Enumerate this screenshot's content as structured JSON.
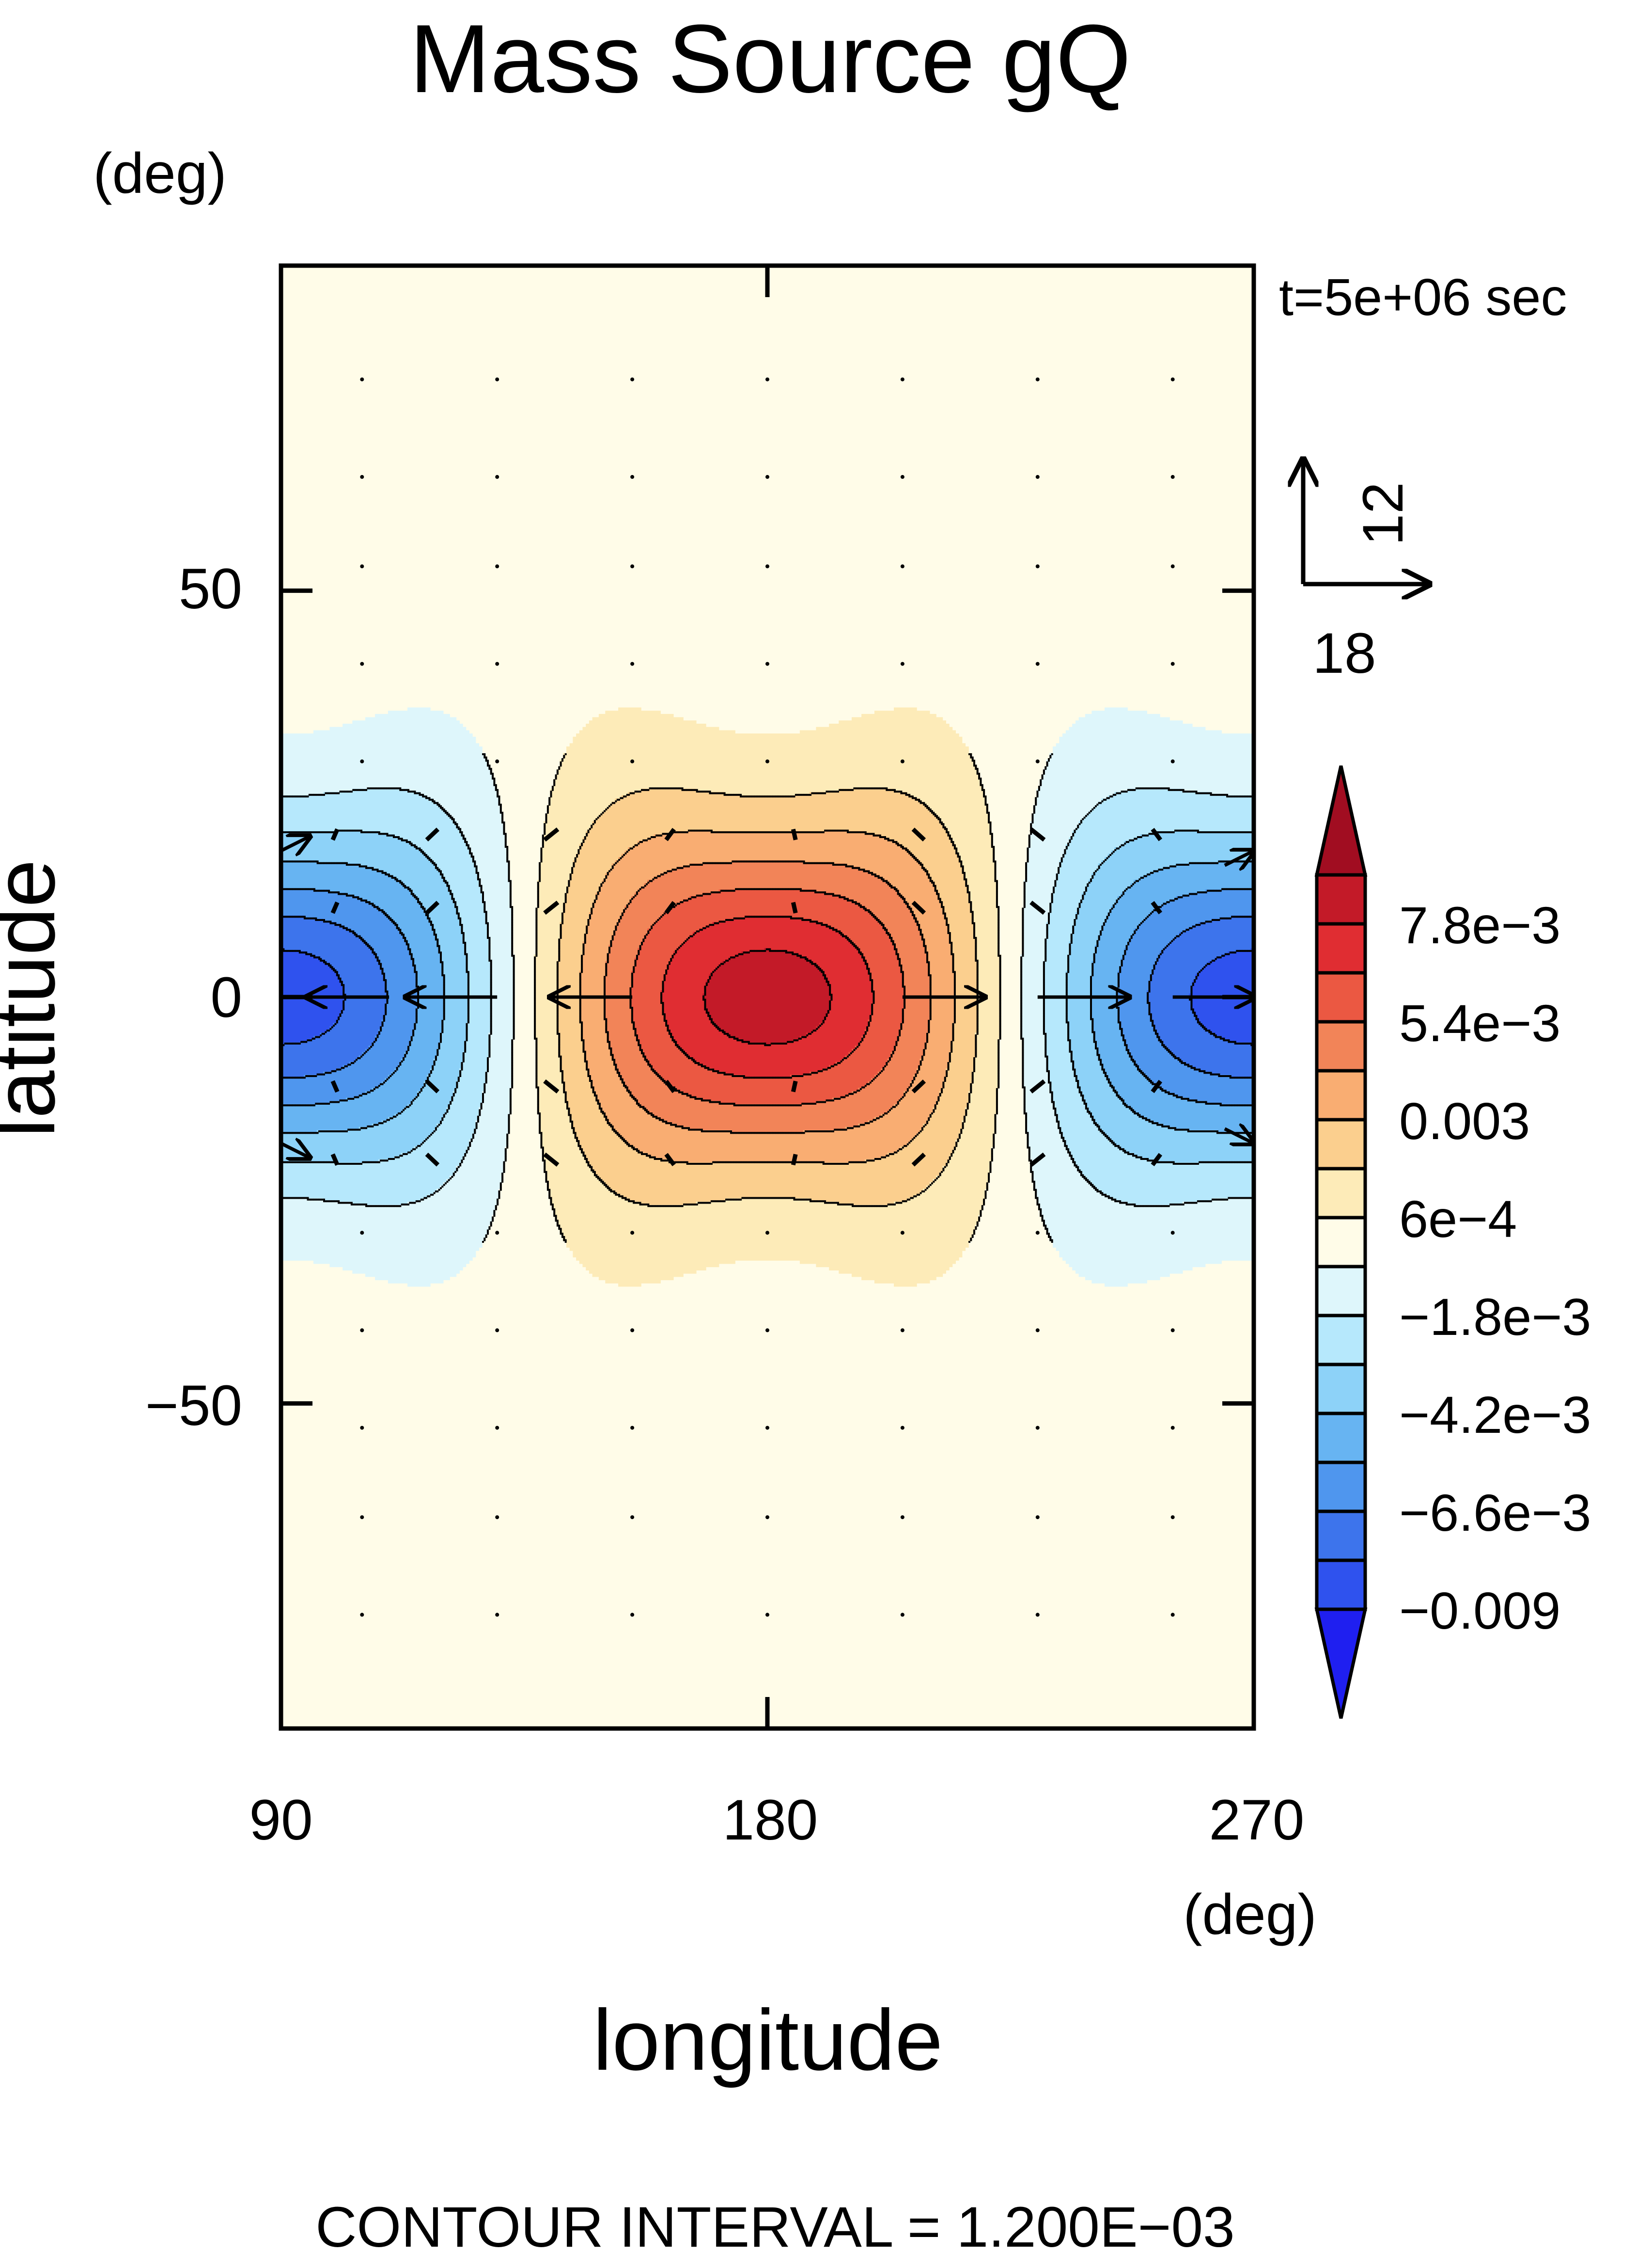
{
  "chart_data": {
    "type": "heatmap",
    "title": "Mass Source gQ",
    "xlabel": "longitude",
    "ylabel": "latitude",
    "x_unit": "(deg)",
    "y_unit": "(deg)",
    "xlim": [
      90,
      270
    ],
    "ylim": [
      -90,
      90
    ],
    "x_ticks": [
      90,
      180,
      270
    ],
    "x_tick_labels": [
      "90",
      "180",
      "270"
    ],
    "y_ticks": [
      50,
      0,
      -50
    ],
    "y_tick_labels": [
      "50",
      "0",
      "−50"
    ],
    "time_label": "t=5e+06 sec",
    "reference_vector": {
      "u": 18,
      "v": 12,
      "u_label": "18",
      "v_label": "12"
    },
    "footer": "CONTOUR INTERVAL = 1.200E−03",
    "contour_interval": 0.0012,
    "field_extrema": [
      {
        "lon": 90,
        "lat": 0,
        "value": -0.0085
      },
      {
        "lon": 180,
        "lat": 0,
        "value": 0.0085
      },
      {
        "lon": 270,
        "lat": 0,
        "value": -0.0085
      }
    ],
    "colorbar": {
      "levels": [
        -0.009,
        -0.0078,
        -0.0066,
        -0.0054,
        -0.0042,
        -0.003,
        -0.0018,
        -0.0006,
        0.0006,
        0.0018,
        0.003,
        0.0042,
        0.0054,
        0.0066,
        0.0078,
        0.009
      ],
      "tick_labels": [
        "7.8e−3",
        "5.4e−3",
        "0.003",
        "6e−4",
        "−1.8e−3",
        "−4.2e−3",
        "−6.6e−3",
        "−0.009"
      ],
      "tick_values": [
        0.0078,
        0.0054,
        0.003,
        0.0006,
        -0.0018,
        -0.0042,
        -0.0066,
        -0.009
      ],
      "colors": [
        "#1f1ff0",
        "#2f52ee",
        "#3d74ec",
        "#4f96ee",
        "#67b4f2",
        "#8dd2f8",
        "#b6e8fc",
        "#def6fb",
        "#fffce8",
        "#fdebb8",
        "#fbcf8e",
        "#f9ad72",
        "#f28458",
        "#eb5842",
        "#e02d32",
        "#c31a28",
        "#a10d21"
      ]
    }
  }
}
